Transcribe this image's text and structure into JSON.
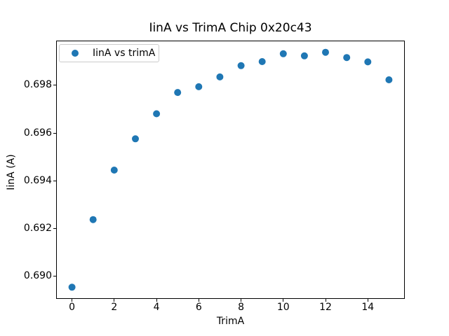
{
  "chart_data": {
    "type": "scatter",
    "title": "IinA vs TrimA Chip 0x20c43",
    "xlabel": "TrimA",
    "ylabel": "IinA (A)",
    "legend_label": "IinA vs trimA",
    "legend_position": "upper left",
    "marker_color": "#1f77b4",
    "axis_color": "#000000",
    "background": "#ffffff",
    "grid": false,
    "x": [
      0,
      1,
      2,
      3,
      4,
      5,
      6,
      7,
      8,
      9,
      10,
      11,
      12,
      13,
      14,
      15
    ],
    "y": [
      0.68955,
      0.69238,
      0.69445,
      0.69576,
      0.69681,
      0.6977,
      0.69794,
      0.69835,
      0.69882,
      0.69899,
      0.69932,
      0.69923,
      0.69938,
      0.69916,
      0.69898,
      0.69823
    ],
    "xlim": [
      -0.75,
      15.75
    ],
    "ylim": [
      0.68906,
      0.69987
    ],
    "xticks": [
      0,
      2,
      4,
      6,
      8,
      10,
      12,
      14
    ],
    "xtick_labels": [
      "0",
      "2",
      "4",
      "6",
      "8",
      "10",
      "12",
      "14"
    ],
    "yticks": [
      0.69,
      0.692,
      0.694,
      0.696,
      0.698
    ],
    "ytick_labels": [
      "0.690",
      "0.692",
      "0.694",
      "0.696",
      "0.698"
    ]
  }
}
